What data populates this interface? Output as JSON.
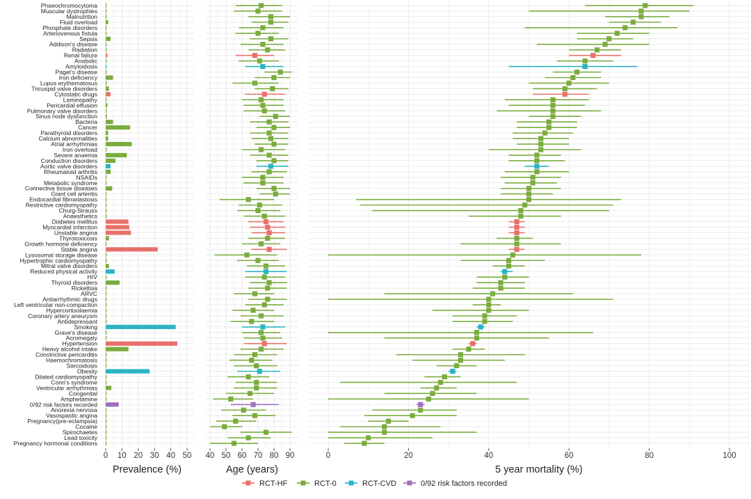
{
  "chart_data": {
    "type": "forest",
    "colors": {
      "RCT-HF": "#e8706a",
      "RCT-0": "#7aac3e",
      "RCT-CVD": "#2bb3c4",
      "0/92 risk factors recorded": "#a070c0"
    },
    "panels": [
      {
        "key": "prev",
        "xlabel": "Prevalence (%)",
        "xlim": [
          0,
          50
        ],
        "ticks": [
          0,
          10,
          20,
          30,
          40,
          50
        ]
      },
      {
        "key": "age",
        "xlabel": "Age (years)",
        "xlim": [
          40,
          90
        ],
        "ticks": [
          40,
          50,
          60,
          70,
          80,
          90
        ]
      },
      {
        "key": "mort",
        "xlabel": "5 year mortality (%)",
        "xlim": [
          0,
          100
        ],
        "ticks": [
          0,
          20,
          40,
          60,
          80,
          100
        ]
      }
    ],
    "legend": [
      "RCT-HF",
      "RCT-0",
      "RCT-CVD",
      "0/92 risk factors recorded"
    ],
    "rows": [
      {
        "label": "Phaeochromocytoma",
        "g": "RCT-0",
        "prev": 0.3,
        "age": [
          72,
          56,
          85
        ],
        "mort": [
          79,
          64,
          91
        ]
      },
      {
        "label": "Muscular dystrophies",
        "g": "RCT-0",
        "prev": 0.3,
        "age": [
          70,
          55,
          85
        ],
        "mort": [
          78,
          50,
          90
        ]
      },
      {
        "label": "Malnutrition",
        "g": "RCT-0",
        "prev": 0.4,
        "age": [
          78,
          64,
          90
        ],
        "mort": [
          78,
          69,
          85
        ]
      },
      {
        "label": "Fluid overload",
        "g": "RCT-0",
        "prev": 1.5,
        "age": [
          78,
          66,
          89
        ],
        "mort": [
          76,
          70,
          83
        ]
      },
      {
        "label": "Phosphate disorders",
        "g": "RCT-0",
        "prev": 0.5,
        "age": [
          73,
          58,
          86
        ],
        "mort": [
          74,
          49,
          87
        ]
      },
      {
        "label": "Arteriovenous fistula",
        "g": "RCT-0",
        "prev": 0.4,
        "age": [
          70,
          56,
          83
        ],
        "mort": [
          72,
          62,
          80
        ]
      },
      {
        "label": "Sepsis",
        "g": "RCT-0",
        "prev": 3.0,
        "age": [
          78,
          65,
          89
        ],
        "mort": [
          70,
          62,
          76
        ]
      },
      {
        "label": "Addison's disease",
        "g": "RCT-0",
        "prev": 0.5,
        "age": [
          73,
          59,
          86
        ],
        "mort": [
          69,
          52,
          80
        ]
      },
      {
        "label": "Radiation",
        "g": "RCT-0",
        "prev": 0.5,
        "age": [
          76,
          64,
          87
        ],
        "mort": [
          67,
          60,
          73
        ]
      },
      {
        "label": "Renal failure",
        "g": "RCT-HF",
        "prev": 1.0,
        "age": [
          68,
          56,
          80
        ],
        "mort": [
          66,
          60,
          73
        ]
      },
      {
        "label": "Anabolic",
        "g": "RCT-0",
        "prev": 0.3,
        "age": [
          71,
          58,
          83
        ],
        "mort": [
          64,
          57,
          71
        ]
      },
      {
        "label": "Amyloidosis",
        "g": "RCT-CVD",
        "prev": 0.3,
        "age": [
          73,
          62,
          86
        ],
        "mort": [
          64,
          45,
          77
        ]
      },
      {
        "label": "Paget's disease",
        "g": "RCT-0",
        "prev": 0.5,
        "age": [
          84,
          74,
          91
        ],
        "mort": [
          62,
          56,
          68
        ]
      },
      {
        "label": "Iron deficiency",
        "g": "RCT-0",
        "prev": 4.5,
        "age": [
          80,
          68,
          90
        ],
        "mort": [
          61,
          54,
          68
        ]
      },
      {
        "label": "Lupus erythematosus",
        "g": "RCT-0",
        "prev": 0.6,
        "age": [
          68,
          54,
          83
        ],
        "mort": [
          60,
          50,
          70
        ]
      },
      {
        "label": "Tricuspid valve disorders",
        "g": "RCT-0",
        "prev": 2.0,
        "age": [
          79,
          68,
          89
        ],
        "mort": [
          59,
          51,
          67
        ]
      },
      {
        "label": "Cytostatic drugs",
        "g": "RCT-HF",
        "prev": 3.0,
        "age": [
          74,
          62,
          87
        ],
        "mort": [
          59,
          51,
          65
        ]
      },
      {
        "label": "Laminopathy",
        "g": "RCT-0",
        "prev": 0.3,
        "age": [
          72,
          60,
          86
        ],
        "mort": [
          56,
          44,
          65
        ]
      },
      {
        "label": "Pericardial effusion",
        "g": "RCT-0",
        "prev": 1.0,
        "age": [
          73,
          61,
          86
        ],
        "mort": [
          56,
          45,
          64
        ]
      },
      {
        "label": "Pulmonary valve disorders",
        "g": "RCT-0",
        "prev": 0.5,
        "age": [
          74,
          61,
          87
        ],
        "mort": [
          56,
          42,
          68
        ]
      },
      {
        "label": "Sinus node dysfunction",
        "g": "RCT-0",
        "prev": 0.7,
        "age": [
          81,
          71,
          90
        ],
        "mort": [
          56,
          50,
          63
        ]
      },
      {
        "label": "Bacteria",
        "g": "RCT-0",
        "prev": 4.5,
        "age": [
          77,
          65,
          89
        ],
        "mort": [
          55,
          47,
          62
        ]
      },
      {
        "label": "Cancer",
        "g": "RCT-0",
        "prev": 15.0,
        "age": [
          80,
          69,
          90
        ],
        "mort": [
          55,
          47,
          62
        ]
      },
      {
        "label": "Parathyroid disorders",
        "g": "RCT-0",
        "prev": 1.5,
        "age": [
          77,
          65,
          89
        ],
        "mort": [
          54,
          46,
          61
        ]
      },
      {
        "label": "Calcium abnormalities",
        "g": "RCT-0",
        "prev": 1.5,
        "age": [
          78,
          66,
          89
        ],
        "mort": [
          53,
          46,
          60
        ]
      },
      {
        "label": "Atrial arrhythmias",
        "g": "RCT-0",
        "prev": 16.0,
        "age": [
          80,
          68,
          89
        ],
        "mort": [
          53,
          47,
          60
        ]
      },
      {
        "label": "Iron overload",
        "g": "RCT-0",
        "prev": 0.5,
        "age": [
          72,
          60,
          87
        ],
        "mort": [
          53,
          40,
          63
        ]
      },
      {
        "label": "Severe anaemia",
        "g": "RCT-0",
        "prev": 13.0,
        "age": [
          77,
          65,
          89
        ],
        "mort": [
          52,
          45,
          58
        ]
      },
      {
        "label": "Conduction disorders",
        "g": "RCT-0",
        "prev": 6.0,
        "age": [
          80,
          69,
          89
        ],
        "mort": [
          52,
          45,
          59
        ]
      },
      {
        "label": "Aortic valve disorders",
        "g": "RCT-CVD",
        "prev": 3.0,
        "age": [
          78,
          69,
          89
        ],
        "mort": [
          52,
          49,
          55
        ]
      },
      {
        "label": "Rheumatoid arthritis",
        "g": "RCT-0",
        "prev": 3.0,
        "age": [
          77,
          66,
          88
        ],
        "mort": [
          52,
          44,
          60
        ]
      },
      {
        "label": "NSAIDs",
        "g": "RCT-0",
        "prev": 0.5,
        "age": [
          73,
          60,
          86
        ],
        "mort": [
          51,
          43,
          58
        ]
      },
      {
        "label": "Metabolic syndrome",
        "g": "RCT-0",
        "prev": 0.5,
        "age": [
          73,
          61,
          86
        ],
        "mort": [
          51,
          44,
          57
        ]
      },
      {
        "label": "Connective tissue diseases",
        "g": "RCT-0",
        "prev": 4.0,
        "age": [
          80,
          69,
          90
        ],
        "mort": [
          50,
          43,
          58
        ]
      },
      {
        "label": "Giant cell arteritis",
        "g": "RCT-0",
        "prev": 0.5,
        "age": [
          81,
          71,
          90
        ],
        "mort": [
          50,
          43,
          56
        ]
      },
      {
        "label": "Endocardial fibroelastosis",
        "g": "RCT-0",
        "prev": 0.3,
        "age": [
          64,
          46,
          80
        ],
        "mort": [
          50,
          7,
          73
        ]
      },
      {
        "label": "Restrictive cardiomyopathy",
        "g": "RCT-0",
        "prev": 0.3,
        "age": [
          71,
          58,
          85
        ],
        "mort": [
          49,
          8,
          71
        ]
      },
      {
        "label": "Churg-Strauss",
        "g": "RCT-0",
        "prev": 0.3,
        "age": [
          70,
          57,
          84
        ],
        "mort": [
          48,
          11,
          70
        ]
      },
      {
        "label": "Anaesthetics",
        "g": "RCT-0",
        "prev": 0.3,
        "age": [
          74,
          61,
          87
        ],
        "mort": [
          48,
          35,
          58
        ]
      },
      {
        "label": "Diabetes mellitus",
        "g": "RCT-HF",
        "prev": 14.0,
        "age": [
          75,
          64,
          86
        ],
        "mort": [
          47,
          45,
          49
        ]
      },
      {
        "label": "Myocardial infarction",
        "g": "RCT-HF",
        "prev": 14.5,
        "age": [
          76,
          65,
          87
        ],
        "mort": [
          47,
          45,
          49
        ]
      },
      {
        "label": "Unstable angina",
        "g": "RCT-HF",
        "prev": 15.5,
        "age": [
          77,
          66,
          87
        ],
        "mort": [
          47,
          45,
          49
        ]
      },
      {
        "label": "Thyrotoxicosis",
        "g": "RCT-0",
        "prev": 2.0,
        "age": [
          76,
          64,
          87
        ],
        "mort": [
          47,
          42,
          51
        ]
      },
      {
        "label": "Growth hormone deficiency",
        "g": "RCT-0",
        "prev": 0.3,
        "age": [
          72,
          60,
          84
        ],
        "mort": [
          47,
          33,
          58
        ]
      },
      {
        "label": "Stable angina",
        "g": "RCT-HF",
        "prev": 32.0,
        "age": [
          77,
          66,
          88
        ],
        "mort": [
          47,
          45,
          49
        ]
      },
      {
        "label": "Lysosomal storage disease",
        "g": "RCT-0",
        "prev": 0.3,
        "age": [
          63,
          43,
          82
        ],
        "mort": [
          46,
          0,
          78
        ]
      },
      {
        "label": "Hypertrophic cardiomyopathy",
        "g": "RCT-0",
        "prev": 0.5,
        "age": [
          70,
          57,
          83
        ],
        "mort": [
          45,
          33,
          54
        ]
      },
      {
        "label": "Mitral valve disorders",
        "g": "RCT-0",
        "prev": 2.0,
        "age": [
          75,
          63,
          87
        ],
        "mort": [
          45,
          41,
          49
        ]
      },
      {
        "label": "Reduced physical activity",
        "g": "RCT-CVD",
        "prev": 5.5,
        "age": [
          75,
          62,
          88
        ],
        "mort": [
          44,
          43,
          46
        ]
      },
      {
        "label": "HIV",
        "g": "RCT-0",
        "prev": 0.3,
        "age": [
          74,
          62,
          87
        ],
        "mort": [
          44,
          37,
          50
        ]
      },
      {
        "label": "Thyroid disorders",
        "g": "RCT-0",
        "prev": 8.5,
        "age": [
          77,
          65,
          88
        ],
        "mort": [
          43,
          37,
          49
        ]
      },
      {
        "label": "Rickettsia",
        "g": "RCT-0",
        "prev": 0.3,
        "age": [
          76,
          64,
          88
        ],
        "mort": [
          43,
          36,
          49
        ]
      },
      {
        "label": "ARVC",
        "g": "RCT-0",
        "prev": 0.3,
        "age": [
          68,
          55,
          80
        ],
        "mort": [
          41,
          14,
          61
        ]
      },
      {
        "label": "Antiarrhythmic drugs",
        "g": "RCT-0",
        "prev": 0.5,
        "age": [
          76,
          64,
          88
        ],
        "mort": [
          40,
          0,
          71
        ]
      },
      {
        "label": "Left ventricular non-compaction",
        "g": "RCT-0",
        "prev": 0.3,
        "age": [
          74,
          62,
          86
        ],
        "mort": [
          40,
          36,
          43
        ]
      },
      {
        "label": "Hypercortisolaemia",
        "g": "RCT-0",
        "prev": 0.5,
        "age": [
          67,
          54,
          80
        ],
        "mort": [
          40,
          26,
          50
        ]
      },
      {
        "label": "Coronary artery aneurysm",
        "g": "RCT-0",
        "prev": 0.3,
        "age": [
          72,
          59,
          86
        ],
        "mort": [
          39,
          31,
          47
        ]
      },
      {
        "label": "Antidepressant",
        "g": "RCT-0",
        "prev": 0.5,
        "age": [
          66,
          53,
          80
        ],
        "mort": [
          39,
          31,
          46
        ]
      },
      {
        "label": "Smoking",
        "g": "RCT-CVD",
        "prev": 43.0,
        "age": [
          73,
          60,
          87
        ],
        "mort": [
          38,
          37,
          39
        ]
      },
      {
        "label": "Grave's disease",
        "g": "RCT-0",
        "prev": 0.5,
        "age": [
          72,
          60,
          84
        ],
        "mort": [
          37,
          0,
          66
        ]
      },
      {
        "label": "Acromegaly",
        "g": "RCT-0",
        "prev": 0.3,
        "age": [
          73,
          61,
          85
        ],
        "mort": [
          37,
          14,
          55
        ]
      },
      {
        "label": "Hypertension",
        "g": "RCT-HF",
        "prev": 44.0,
        "age": [
          74,
          61,
          88
        ],
        "mort": [
          36,
          35,
          37
        ]
      },
      {
        "label": "Heavy alcohol intake",
        "g": "RCT-0",
        "prev": 14.0,
        "age": [
          72,
          59,
          86
        ],
        "mort": [
          35,
          31,
          39
        ]
      },
      {
        "label": "Constrictive pericarditis",
        "g": "RCT-0",
        "prev": 0.3,
        "age": [
          68,
          55,
          82
        ],
        "mort": [
          33,
          17,
          49
        ]
      },
      {
        "label": "Haemochromatosis",
        "g": "RCT-0",
        "prev": 0.3,
        "age": [
          66,
          52,
          79
        ],
        "mort": [
          33,
          21,
          44
        ]
      },
      {
        "label": "Sarcoidosis",
        "g": "RCT-0",
        "prev": 0.3,
        "age": [
          69,
          55,
          82
        ],
        "mort": [
          32,
          27,
          37
        ]
      },
      {
        "label": "Obesity",
        "g": "RCT-CVD",
        "prev": 27.0,
        "age": [
          71,
          57,
          84
        ],
        "mort": [
          31,
          30,
          32
        ]
      },
      {
        "label": "Dilated cardiomyopathy",
        "g": "RCT-0",
        "prev": 0.5,
        "age": [
          64,
          51,
          77
        ],
        "mort": [
          29,
          24,
          33
        ]
      },
      {
        "label": "Conn's syndrome",
        "g": "RCT-0",
        "prev": 0.3,
        "age": [
          69,
          56,
          82
        ],
        "mort": [
          28,
          3,
          47
        ]
      },
      {
        "label": "Ventricular arrhythmias",
        "g": "RCT-0",
        "prev": 3.5,
        "age": [
          69,
          55,
          82
        ],
        "mort": [
          27,
          23,
          32
        ]
      },
      {
        "label": "Congenital",
        "g": "RCT-0",
        "prev": 0.3,
        "age": [
          65,
          50,
          80
        ],
        "mort": [
          26,
          14,
          37
        ]
      },
      {
        "label": "Amphetamine",
        "g": "RCT-0",
        "prev": 0.3,
        "age": [
          53,
          42,
          67
        ],
        "mort": [
          25,
          0,
          50
        ]
      },
      {
        "label": "0/92 risk factors recorded",
        "g": "0/92 risk factors recorded",
        "prev": 8.0,
        "age": [
          67,
          53,
          83
        ],
        "mort": [
          23,
          22,
          24
        ]
      },
      {
        "label": "Anorexia nervosa",
        "g": "RCT-0",
        "prev": 0.3,
        "age": [
          61,
          47,
          75
        ],
        "mort": [
          23,
          11,
          32
        ]
      },
      {
        "label": "Vasospastic angina",
        "g": "RCT-0",
        "prev": 0.3,
        "age": [
          68,
          54,
          81
        ],
        "mort": [
          21,
          9,
          32
        ]
      },
      {
        "label": "Pregnancy(pre-eclampsia)",
        "g": "RCT-0",
        "prev": 0.3,
        "age": [
          56,
          44,
          69
        ],
        "mort": [
          15,
          10,
          20
        ]
      },
      {
        "label": "Cocaine",
        "g": "RCT-0",
        "prev": 0.3,
        "age": [
          49,
          40,
          60
        ],
        "mort": [
          14,
          3,
          28
        ]
      },
      {
        "label": "Spirochaetes",
        "g": "RCT-0",
        "prev": 0.3,
        "age": [
          75,
          59,
          91
        ],
        "mort": [
          14,
          0,
          37
        ]
      },
      {
        "label": "Lead toxicity",
        "g": "RCT-0",
        "prev": 0.3,
        "age": [
          64,
          51,
          78
        ],
        "mort": [
          10,
          0,
          26
        ]
      },
      {
        "label": "Pregnancy hormonal conditions",
        "g": "RCT-0",
        "prev": 0.3,
        "age": [
          55,
          40,
          70
        ],
        "mort": [
          9,
          4,
          14
        ]
      }
    ]
  }
}
